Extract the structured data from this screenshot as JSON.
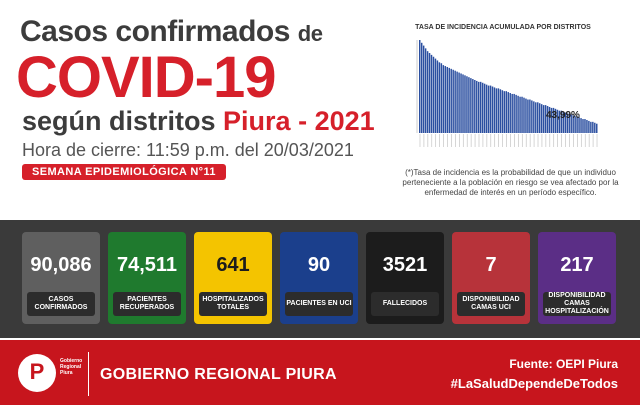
{
  "header": {
    "line1_main": "Casos confirmados",
    "line1_small": "de",
    "line2": "COVID-19",
    "line3_main": "según distritos",
    "line3_red": "Piura - 2021",
    "line4": "Hora de cierre: 11:59 p.m. del 20/03/2021",
    "semana": "SEMANA EPIDEMIOLÓGICA N°11"
  },
  "chart_data": {
    "type": "bar",
    "title": "TASA DE INCIDENCIA ACUMULADA POR DISTRITOS",
    "annotation": "43,99%",
    "bar_color": "#2b4fa0",
    "values": [
      100,
      97,
      94,
      91,
      88,
      86,
      84,
      82,
      80,
      78,
      76,
      75,
      73,
      72,
      71,
      70,
      69,
      68,
      67,
      66,
      65,
      64,
      63,
      62,
      61,
      60,
      59,
      58,
      57,
      56,
      55,
      55,
      54,
      53,
      52,
      51,
      51,
      50,
      49,
      48,
      48,
      47,
      46,
      45,
      45,
      44,
      43,
      42,
      42,
      41,
      40,
      39,
      39,
      38,
      37,
      36,
      36,
      35,
      34,
      33,
      33,
      32,
      31,
      30,
      30,
      29,
      28,
      27,
      27,
      26,
      25,
      24,
      24,
      23,
      22,
      21,
      21,
      20,
      19,
      18,
      18,
      17,
      16,
      15,
      15,
      14,
      13,
      12,
      12,
      11,
      10
    ]
  },
  "note": "(*)Tasa de incidencia es la probabilidad de que un individuo perteneciente a la población en riesgo se vea afectado por la enfermedad de interés en un período específico.",
  "cards": [
    {
      "value": "90,086",
      "label": "CASOS CONFIRMADOS",
      "color": "#5f5f5f"
    },
    {
      "value": "74,511",
      "label": "PACIENTES RECUPERADOS",
      "color": "#1f7a2e"
    },
    {
      "value": "641",
      "label": "HOSPITALIZADOS TOTALES",
      "color": "#f4c400"
    },
    {
      "value": "90",
      "label": "PACIENTES EN UCI",
      "color": "#1b3f8c"
    },
    {
      "value": "3521",
      "label": "FALLECIDOS",
      "color": "#1c1c1c"
    },
    {
      "value": "7",
      "label": "DISPONIBILIDAD CAMAS UCI",
      "color": "#b7333a"
    },
    {
      "value": "217",
      "label": "DISPONIBILIDAD CAMAS HOSPITALIZACIÓN",
      "color": "#5b2e86"
    }
  ],
  "footer": {
    "logo_letter": "P",
    "logo_text": "Gobierno Regional Piura",
    "org": "GOBIERNO REGIONAL PIURA",
    "fuente": "Fuente: OEPI Piura",
    "hashtag": "#LaSaludDependeDeTodos"
  }
}
